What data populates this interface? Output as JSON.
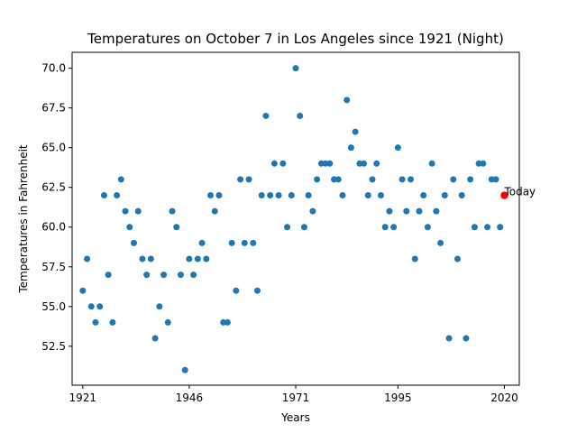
{
  "chart_data": {
    "type": "scatter",
    "title": "Temperatures on October 7 in Los Angeles since 1921 (Night)",
    "xlabel": "Years",
    "ylabel": "Temperatures in Fahrenheit",
    "xlim": [
      1918.5,
      2023.5
    ],
    "ylim": [
      50.05,
      71.0
    ],
    "xticks": [
      1921,
      1946,
      1971,
      1995,
      2020
    ],
    "yticks": [
      52.5,
      55.0,
      57.5,
      60.0,
      62.5,
      65.0,
      67.5,
      70.0
    ],
    "grid": false,
    "point_color": "#1f77b4",
    "highlight_color": "#ff0000",
    "annotation": {
      "text": "Today",
      "x": 2020,
      "y": 62
    },
    "series": [
      {
        "x": [
          1921,
          1922,
          1923,
          1924,
          1925,
          1926,
          1927,
          1928,
          1929,
          1930,
          1931,
          1932,
          1933,
          1934,
          1935,
          1936,
          1937,
          1938,
          1939,
          1940,
          1941,
          1942,
          1943,
          1944,
          1945,
          1946,
          1947,
          1948,
          1949,
          1950,
          1951,
          1952,
          1953,
          1954,
          1955,
          1956,
          1957,
          1958,
          1959,
          1960,
          1961,
          1962,
          1963,
          1964,
          1965,
          1966,
          1967,
          1968,
          1969,
          1970,
          1971,
          1972,
          1973,
          1974,
          1975,
          1976,
          1977,
          1978,
          1979,
          1980,
          1981,
          1982,
          1983,
          1984,
          1985,
          1986,
          1987,
          1988,
          1989,
          1990,
          1991,
          1992,
          1993,
          1994,
          1995,
          1996,
          1997,
          1998,
          1999,
          2000,
          2001,
          2002,
          2003,
          2004,
          2005,
          2006,
          2007,
          2008,
          2009,
          2010,
          2011,
          2012,
          2013,
          2014,
          2015,
          2016,
          2017,
          2018,
          2019
        ],
        "y": [
          56,
          58,
          55,
          54,
          55,
          62,
          57,
          54,
          62,
          63,
          61,
          60,
          59,
          61,
          58,
          57,
          58,
          53,
          55,
          57,
          54,
          61,
          60,
          57,
          51,
          58,
          57,
          58,
          59,
          58,
          62,
          61,
          62,
          54,
          54,
          59,
          56,
          63,
          59,
          63,
          59,
          56,
          62,
          67,
          62,
          64,
          62,
          64,
          60,
          62,
          70,
          67,
          60,
          62,
          61,
          63,
          64,
          64,
          64,
          63,
          63,
          62,
          68,
          65,
          66,
          64,
          64,
          62,
          63,
          64,
          62,
          60,
          61,
          60,
          65,
          63,
          61,
          63,
          58,
          61,
          62,
          60,
          64,
          61,
          59,
          62,
          53,
          63,
          58,
          62,
          53,
          63,
          60,
          64,
          64,
          60,
          63,
          63,
          60
        ]
      },
      {
        "name": "Today",
        "x": [
          2020
        ],
        "y": [
          62
        ]
      }
    ]
  }
}
